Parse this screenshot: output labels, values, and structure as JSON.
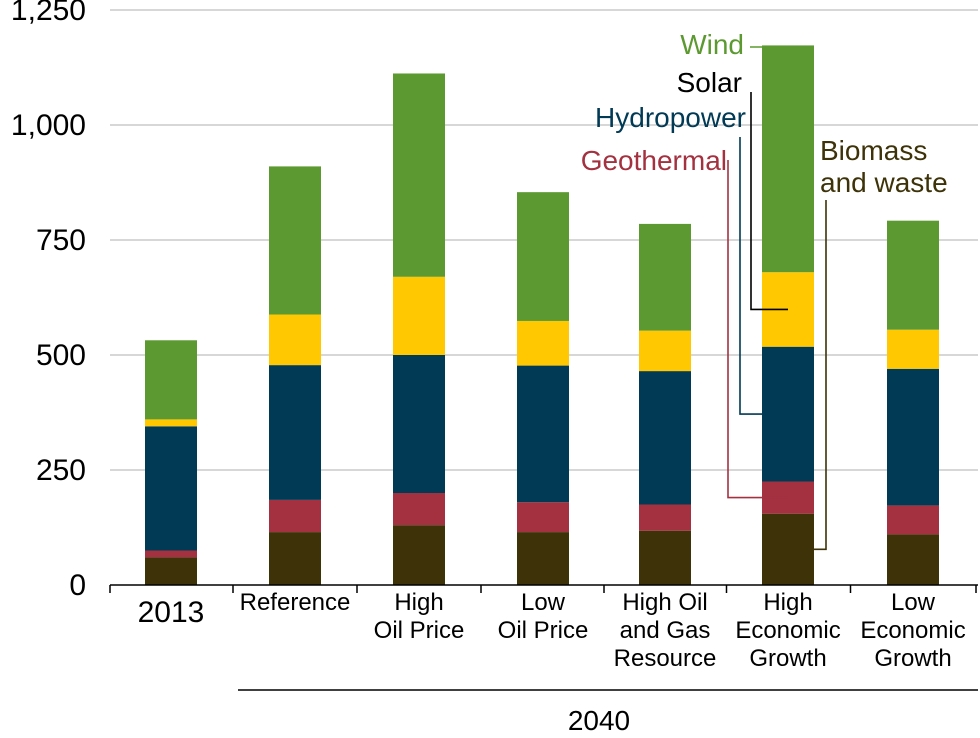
{
  "chart_data": {
    "type": "bar",
    "stacked": true,
    "categories": [
      [
        "2013"
      ],
      [
        "Reference"
      ],
      [
        "High",
        "Oil Price"
      ],
      [
        "Low",
        "Oil Price"
      ],
      [
        "High Oil",
        "and Gas",
        "Resource"
      ],
      [
        "High",
        "Economic",
        "Growth"
      ],
      [
        "Low",
        "Economic",
        "Growth"
      ]
    ],
    "group_label": "2040",
    "series": [
      {
        "name": "Biomass and waste",
        "label_lines": [
          "Biomass",
          "and waste"
        ],
        "color": "#3d3208",
        "label_color": "#3d3208",
        "values": [
          60,
          115,
          130,
          115,
          118,
          155,
          110
        ]
      },
      {
        "name": "Geothermal",
        "label_lines": [
          "Geothermal"
        ],
        "color": "#a33140",
        "label_color": "#a33140",
        "values": [
          15,
          70,
          70,
          65,
          57,
          70,
          63
        ]
      },
      {
        "name": "Hydropower",
        "label_lines": [
          "Hydropower"
        ],
        "color": "#003a55",
        "label_color": "#003a55",
        "values": [
          270,
          293,
          300,
          297,
          290,
          293,
          297
        ]
      },
      {
        "name": "Solar",
        "label_lines": [
          "Solar"
        ],
        "color": "#ffc800",
        "label_color": "#000000",
        "values": [
          15,
          110,
          170,
          97,
          88,
          162,
          85
        ]
      },
      {
        "name": "Wind",
        "label_lines": [
          "Wind"
        ],
        "color": "#5c9a31",
        "label_color": "#5c9a31",
        "values": [
          172,
          322,
          442,
          280,
          232,
          493,
          237
        ]
      }
    ],
    "yticks": [
      0,
      250,
      500,
      750,
      1000,
      1250
    ],
    "ytick_labels": [
      "0",
      "250",
      "500",
      "750",
      "1,000",
      "1,250"
    ],
    "ylim": [
      0,
      1250
    ],
    "grid": true,
    "legend": "leader-line labels on High Economic Growth bar"
  }
}
